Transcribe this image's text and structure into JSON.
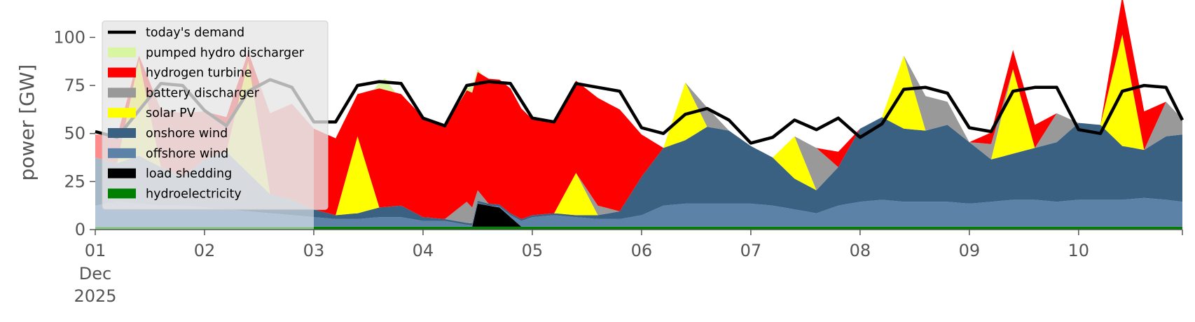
{
  "chart_data": {
    "type": "area",
    "stacked": true,
    "title": "",
    "xlabel": "",
    "ylabel": "power [GW]",
    "ylim": [
      0,
      118
    ],
    "xlim_days": [
      1,
      10.95
    ],
    "yticks": [
      0,
      25,
      50,
      75,
      100
    ],
    "x_tick_labels": [
      "01",
      "02",
      "03",
      "04",
      "05",
      "06",
      "07",
      "08",
      "09",
      "10"
    ],
    "x_tick_sub_labels": [
      "Dec",
      "2025"
    ],
    "grid": false,
    "legend_position": "upper-left",
    "stack_order_bottom_to_top": [
      "hydroelectricity",
      "load shedding",
      "offshore wind",
      "onshore wind",
      "solar PV",
      "battery discharger",
      "hydrogen turbine",
      "pumped hydro discharger"
    ],
    "series": [
      {
        "name": "today's demand",
        "kind": "line",
        "color": "#000000",
        "x": [
          1.0,
          1.2,
          1.4,
          1.6,
          1.8,
          2.0,
          2.2,
          2.4,
          2.6,
          2.8,
          3.0,
          3.2,
          3.4,
          3.6,
          3.8,
          4.0,
          4.2,
          4.4,
          4.6,
          4.8,
          5.0,
          5.2,
          5.4,
          5.6,
          5.8,
          6.0,
          6.2,
          6.4,
          6.6,
          6.8,
          7.0,
          7.2,
          7.4,
          7.6,
          7.8,
          8.0,
          8.2,
          8.4,
          8.6,
          8.8,
          9.0,
          9.2,
          9.4,
          9.6,
          9.8,
          10.0,
          10.2,
          10.4,
          10.6,
          10.8,
          10.95
        ],
        "y": [
          51,
          48,
          62,
          76,
          75,
          62,
          54,
          72,
          78,
          74,
          56,
          56,
          75,
          77,
          76,
          58,
          54,
          75,
          77,
          76,
          58,
          56,
          76,
          74,
          72,
          53,
          50,
          60,
          63,
          57,
          45,
          48,
          57,
          52,
          58,
          48,
          55,
          73,
          74,
          71,
          53,
          51,
          72,
          74,
          74,
          52,
          50,
          72,
          75,
          74,
          57
        ]
      },
      {
        "name": "pumped hydro discharger",
        "color": "#d8f5a2",
        "x": [
          3.55,
          3.65,
          3.75,
          4.35,
          4.45,
          4.55
        ],
        "y": [
          0,
          6,
          0,
          0,
          3,
          0
        ]
      },
      {
        "name": "hydrogen turbine",
        "color": "#ff0000",
        "x": [
          1.0,
          1.2,
          1.4,
          1.6,
          1.8,
          2.0,
          2.2,
          2.4,
          2.6,
          2.8,
          3.0,
          3.2,
          3.4,
          3.6,
          3.8,
          4.0,
          4.2,
          4.4,
          4.6,
          4.8,
          5.0,
          5.2,
          5.4,
          5.6,
          5.8,
          6.0,
          6.2,
          6.4,
          6.6,
          6.8,
          7.0,
          7.2,
          7.4,
          7.6,
          7.8,
          8.0,
          8.2,
          8.4,
          8.6,
          8.8,
          9.0,
          9.2,
          9.4,
          9.6,
          9.8,
          10.0,
          10.2,
          10.4,
          10.6,
          10.8,
          10.95
        ],
        "y": [
          12,
          14,
          2,
          30,
          33,
          25,
          18,
          5,
          42,
          50,
          42,
          40,
          22,
          62,
          58,
          52,
          48,
          58,
          65,
          65,
          50,
          48,
          48,
          56,
          53,
          22,
          0,
          0,
          0,
          0,
          0,
          0,
          0,
          0,
          8,
          0,
          0,
          0,
          0,
          0,
          0,
          6,
          10,
          12,
          0,
          0,
          0,
          20,
          20,
          0,
          0
        ]
      },
      {
        "name": "battery discharger",
        "color": "#999999",
        "x": [
          1.0,
          1.2,
          1.4,
          1.6,
          1.8,
          2.0,
          2.2,
          2.4,
          2.6,
          2.8,
          3.0,
          3.2,
          3.4,
          3.6,
          3.8,
          4.0,
          4.2,
          4.4,
          4.6,
          4.8,
          5.0,
          5.2,
          5.4,
          5.6,
          5.8,
          6.0,
          6.2,
          6.4,
          6.6,
          6.8,
          7.0,
          7.2,
          7.4,
          7.6,
          7.8,
          8.0,
          8.2,
          8.4,
          8.6,
          8.8,
          9.0,
          9.2,
          9.4,
          9.6,
          9.8,
          10.0,
          10.2,
          10.4,
          10.6,
          10.8,
          10.95
        ],
        "y": [
          0,
          0,
          0,
          0,
          0,
          0,
          0,
          0,
          0,
          0,
          0,
          0,
          0,
          0,
          0,
          0,
          0,
          11,
          0,
          0,
          0,
          0,
          0,
          5,
          0,
          0,
          0,
          0,
          10,
          0,
          0,
          0,
          0,
          22,
          0,
          0,
          0,
          0,
          18,
          12,
          0,
          8,
          0,
          0,
          15,
          0,
          0,
          0,
          0,
          18,
          8
        ]
      },
      {
        "name": "solar PV",
        "color": "#ffff00",
        "x": [
          1.0,
          1.2,
          1.4,
          1.6,
          1.8,
          2.0,
          2.2,
          2.4,
          2.6,
          2.8,
          3.0,
          3.2,
          3.4,
          3.6,
          3.8,
          4.0,
          4.2,
          4.4,
          4.6,
          4.8,
          5.0,
          5.2,
          5.4,
          5.6,
          5.8,
          6.0,
          6.2,
          6.4,
          6.6,
          6.8,
          7.0,
          7.2,
          7.4,
          7.6,
          7.8,
          8.0,
          8.2,
          8.4,
          8.6,
          8.8,
          9.0,
          9.2,
          9.4,
          9.6,
          9.8,
          10.0,
          10.2,
          10.4,
          10.6,
          10.8,
          10.95
        ],
        "y": [
          0,
          0,
          50,
          0,
          0,
          0,
          0,
          58,
          0,
          0,
          0,
          0,
          40,
          0,
          0,
          0,
          0,
          0,
          0,
          0,
          0,
          0,
          22,
          0,
          0,
          0,
          0,
          30,
          0,
          0,
          0,
          0,
          22,
          0,
          0,
          0,
          0,
          38,
          0,
          0,
          0,
          0,
          44,
          0,
          0,
          0,
          0,
          58,
          0,
          0,
          0
        ]
      },
      {
        "name": "onshore wind",
        "color": "#3b6182",
        "x": [
          1.0,
          1.2,
          1.4,
          1.6,
          1.8,
          2.0,
          2.2,
          2.4,
          2.6,
          2.8,
          3.0,
          3.2,
          3.4,
          3.6,
          3.8,
          4.0,
          4.2,
          4.4,
          4.6,
          4.8,
          5.0,
          5.2,
          5.4,
          5.6,
          5.8,
          6.0,
          6.2,
          6.4,
          6.6,
          6.8,
          7.0,
          7.2,
          7.4,
          7.6,
          7.8,
          8.0,
          8.2,
          8.4,
          8.6,
          8.8,
          9.0,
          9.2,
          9.4,
          9.6,
          9.8,
          10.0,
          10.2,
          10.4,
          10.6,
          10.8,
          10.95
        ],
        "y": [
          25,
          20,
          25,
          20,
          15,
          25,
          30,
          20,
          10,
          8,
          4,
          2,
          3,
          5,
          6,
          2,
          1,
          1,
          1,
          1,
          1,
          1,
          1,
          2,
          4,
          20,
          30,
          33,
          40,
          38,
          30,
          25,
          16,
          12,
          20,
          38,
          43,
          38,
          37,
          40,
          32,
          22,
          24,
          27,
          31,
          40,
          39,
          28,
          25,
          33,
          35
        ]
      },
      {
        "name": "offshore wind",
        "color": "#5c82a8",
        "x": [
          1.0,
          1.2,
          1.4,
          1.6,
          1.8,
          2.0,
          2.2,
          2.4,
          2.6,
          2.8,
          3.0,
          3.2,
          3.4,
          3.6,
          3.8,
          4.0,
          4.2,
          4.4,
          4.6,
          4.8,
          5.0,
          5.2,
          5.4,
          5.6,
          5.8,
          6.0,
          6.2,
          6.4,
          6.6,
          6.8,
          7.0,
          7.2,
          7.4,
          7.6,
          7.8,
          8.0,
          8.2,
          8.4,
          8.6,
          8.8,
          9.0,
          9.2,
          9.4,
          9.6,
          9.8,
          10.0,
          10.2,
          10.4,
          10.6,
          10.8,
          10.95
        ],
        "y": [
          11,
          13,
          12,
          11,
          11,
          10,
          9,
          8,
          7,
          6,
          5,
          4,
          4,
          5,
          5,
          3,
          3,
          1,
          0,
          1,
          5,
          6,
          5,
          4,
          4,
          6,
          11,
          12,
          12,
          12,
          12,
          11,
          9,
          7,
          11,
          13,
          14,
          13,
          13,
          13,
          12,
          13,
          14,
          14,
          13,
          14,
          14,
          14,
          15,
          14,
          13
        ]
      },
      {
        "name": "load shedding",
        "color": "#000000",
        "x": [
          4.45,
          4.5,
          4.6,
          4.7,
          4.8,
          4.9
        ],
        "y": [
          0,
          12,
          11,
          10,
          5,
          0
        ]
      },
      {
        "name": "hydroelectricity",
        "color": "#008000",
        "x": [
          1.0,
          2.0,
          3.0,
          4.0,
          5.0,
          6.0,
          7.0,
          8.0,
          9.0,
          10.0,
          10.95
        ],
        "y": [
          1.5,
          1.5,
          1.5,
          1.5,
          1.5,
          1.5,
          1.5,
          1.5,
          1.5,
          1.5,
          1.5
        ]
      }
    ],
    "ghost_overlay": {
      "description": "semi-transparent overlay under the legend",
      "x": [
        1.0,
        1.2,
        1.4,
        1.6,
        1.8,
        2.0,
        2.2,
        2.4,
        2.6,
        2.8,
        3.0
      ],
      "y": [
        50,
        48,
        62,
        76,
        75,
        62,
        54,
        72,
        78,
        74,
        56
      ]
    }
  },
  "legend": {
    "items": [
      {
        "label": "today's demand",
        "kind": "line",
        "color": "#000000"
      },
      {
        "label": "pumped hydro discharger",
        "kind": "patch",
        "color": "#d8f5a2"
      },
      {
        "label": "hydrogen turbine",
        "kind": "patch",
        "color": "#ff0000"
      },
      {
        "label": "battery discharger",
        "kind": "patch",
        "color": "#999999"
      },
      {
        "label": "solar PV",
        "kind": "patch",
        "color": "#ffff00"
      },
      {
        "label": "onshore wind",
        "kind": "patch",
        "color": "#3b6182"
      },
      {
        "label": "offshore wind",
        "kind": "patch",
        "color": "#5c82a8"
      },
      {
        "label": "load shedding",
        "kind": "patch",
        "color": "#000000"
      },
      {
        "label": "hydroelectricity",
        "kind": "patch",
        "color": "#008000"
      }
    ]
  },
  "colors": {
    "axis": "#555555",
    "legend_bg": "#e5e5e5"
  }
}
